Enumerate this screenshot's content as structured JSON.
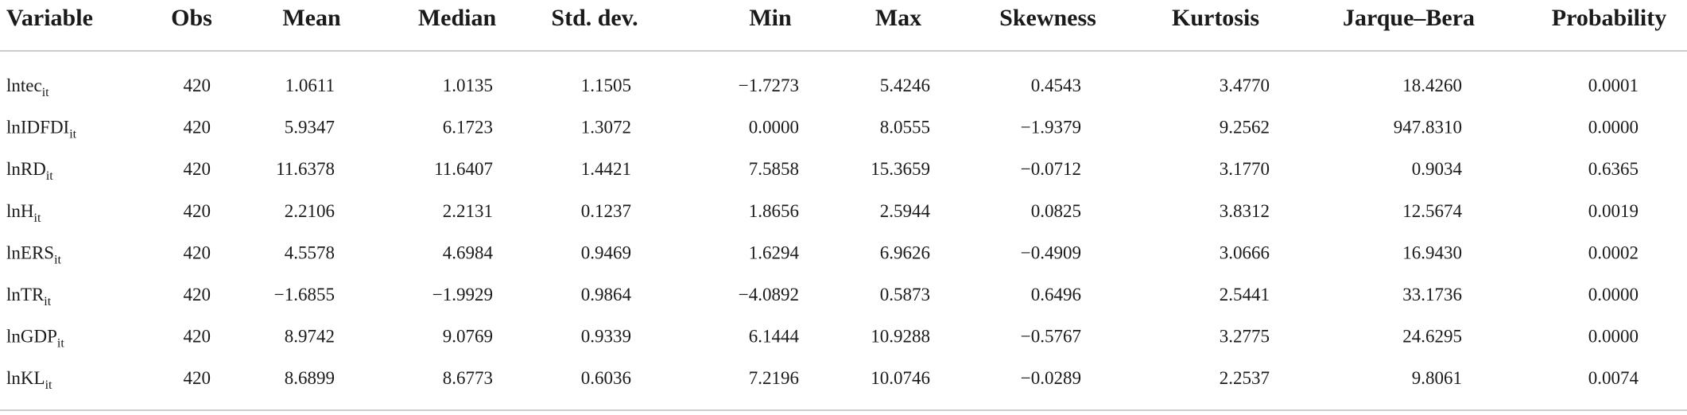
{
  "table": {
    "header": [
      "Variable",
      "Obs",
      "Mean",
      "Median",
      "Std. dev.",
      "Min",
      "Max",
      "Skewness",
      "Kurtosis",
      "Jarque–Bera",
      "Probability"
    ],
    "rows": [
      [
        {
          "base": "lntec",
          "sub": "it"
        },
        "420",
        "1.0611",
        "1.0135",
        "1.1505",
        "−1.7273",
        "5.4246",
        "0.4543",
        "3.4770",
        "18.4260",
        "0.0001"
      ],
      [
        {
          "base": "lnIDFDI",
          "sub": "it"
        },
        "420",
        "5.9347",
        "6.1723",
        "1.3072",
        "0.0000",
        "8.0555",
        "−1.9379",
        "9.2562",
        "947.8310",
        "0.0000"
      ],
      [
        {
          "base": "lnRD",
          "sub": "it"
        },
        "420",
        "11.6378",
        "11.6407",
        "1.4421",
        "7.5858",
        "15.3659",
        "−0.0712",
        "3.1770",
        "0.9034",
        "0.6365"
      ],
      [
        {
          "base": "lnH",
          "sub": "it"
        },
        "420",
        "2.2106",
        "2.2131",
        "0.1237",
        "1.8656",
        "2.5944",
        "0.0825",
        "3.8312",
        "12.5674",
        "0.0019"
      ],
      [
        {
          "base": "lnERS",
          "sub": "it"
        },
        "420",
        "4.5578",
        "4.6984",
        "0.9469",
        "1.6294",
        "6.9626",
        "−0.4909",
        "3.0666",
        "16.9430",
        "0.0002"
      ],
      [
        {
          "base": "lnTR",
          "sub": "it"
        },
        "420",
        "−1.6855",
        "−1.9929",
        "0.9864",
        "−4.0892",
        "0.5873",
        "0.6496",
        "2.5441",
        "33.1736",
        "0.0000"
      ],
      [
        {
          "base": "lnGDP",
          "sub": "it"
        },
        "420",
        "8.9742",
        "9.0769",
        "0.9339",
        "6.1444",
        "10.9288",
        "−0.5767",
        "3.2775",
        "24.6295",
        "0.0000"
      ],
      [
        {
          "base": "lnKL",
          "sub": "it"
        },
        "420",
        "8.6899",
        "8.6773",
        "0.6036",
        "7.2196",
        "10.0746",
        "−0.0289",
        "2.2537",
        "9.8061",
        "0.0074"
      ]
    ]
  }
}
